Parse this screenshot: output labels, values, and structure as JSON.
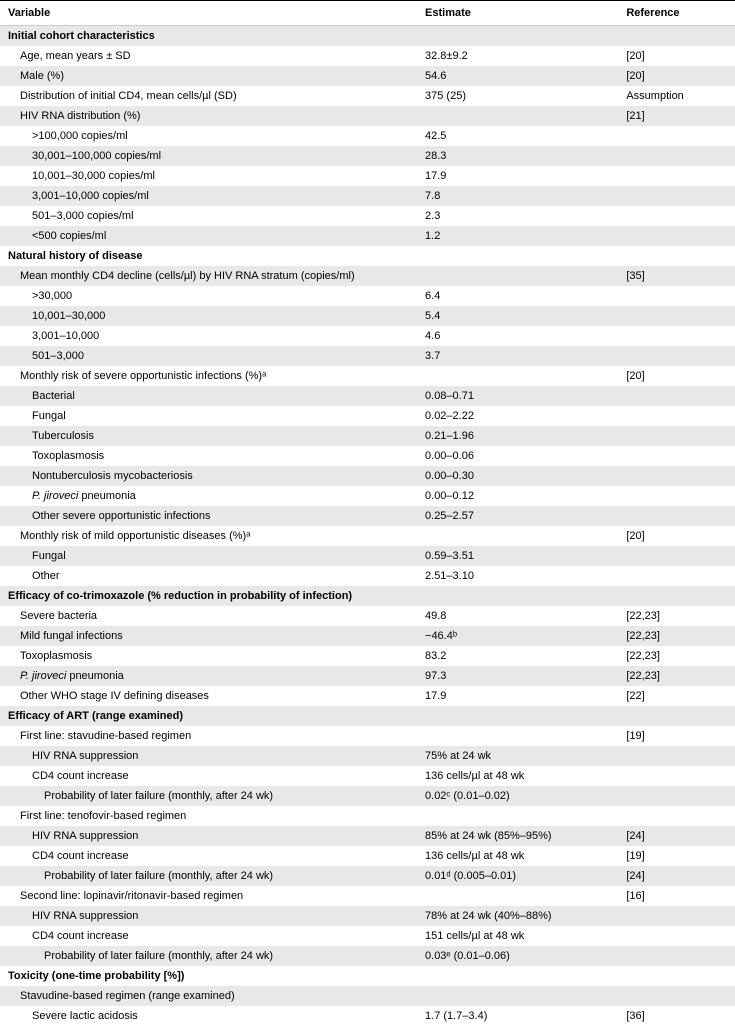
{
  "columns": {
    "variable": "Variable",
    "estimate": "Estimate",
    "reference": "Reference"
  },
  "rows": [
    {
      "type": "section",
      "var": "Initial cohort characteristics",
      "gray": true
    },
    {
      "var": "Age, mean years ± SD",
      "est": "32.8±9.2",
      "ref": "[20]",
      "indent": 1
    },
    {
      "var": "Male (%)",
      "est": "54.6",
      "ref": "[20]",
      "gray": true,
      "indent": 1
    },
    {
      "var": "Distribution of initial CD4, mean cells/µl (SD)",
      "est": "375 (25)",
      "ref": "Assumption",
      "indent": 1
    },
    {
      "var": "HIV RNA distribution (%)",
      "est": "",
      "ref": "[21]",
      "gray": true,
      "indent": 1
    },
    {
      "var": ">100,000 copies/ml",
      "est": "42.5",
      "indent": 2
    },
    {
      "var": "30,001–100,000 copies/ml",
      "est": "28.3",
      "gray": true,
      "indent": 2
    },
    {
      "var": "10,001–30,000 copies/ml",
      "est": "17.9",
      "indent": 2
    },
    {
      "var": "3,001–10,000 copies/ml",
      "est": "7.8",
      "gray": true,
      "indent": 2
    },
    {
      "var": "501–3,000 copies/ml",
      "est": "2.3",
      "indent": 2
    },
    {
      "var": "<500 copies/ml",
      "est": "1.2",
      "gray": true,
      "indent": 2
    },
    {
      "type": "section",
      "var": "Natural history of disease"
    },
    {
      "var": "Mean monthly CD4 decline (cells/µl) by HIV RNA stratum (copies/ml)",
      "est": "",
      "ref": "[35]",
      "gray": true,
      "indent": 1
    },
    {
      "var": ">30,000",
      "est": "6.4",
      "indent": 2
    },
    {
      "var": "10,001–30,000",
      "est": "5.4",
      "gray": true,
      "indent": 2
    },
    {
      "var": "3,001–10,000",
      "est": "4.6",
      "indent": 2
    },
    {
      "var": "501–3,000",
      "est": "3.7",
      "gray": true,
      "indent": 2
    },
    {
      "var": "Monthly risk of severe opportunistic infections (%)ᵃ",
      "est": "",
      "ref": "[20]",
      "indent": 1
    },
    {
      "var": "Bacterial",
      "est": "0.08–0.71",
      "gray": true,
      "indent": 2
    },
    {
      "var": "Fungal",
      "est": "0.02–2.22",
      "indent": 2
    },
    {
      "var": "Tuberculosis",
      "est": "0.21–1.96",
      "gray": true,
      "indent": 2
    },
    {
      "var": "Toxoplasmosis",
      "est": "0.00–0.06",
      "indent": 2
    },
    {
      "var": "Nontuberculosis mycobacteriosis",
      "est": "0.00–0.30",
      "gray": true,
      "indent": 2
    },
    {
      "var": "P. jiroveci pneumonia",
      "est": "0.00–0.12",
      "indent": 2,
      "italicPrefix": "P. jiroveci",
      "suffix": " pneumonia"
    },
    {
      "var": "Other severe opportunistic infections",
      "est": "0.25–2.57",
      "gray": true,
      "indent": 2
    },
    {
      "var": "Monthly risk of mild opportunistic diseases (%)ᵃ",
      "est": "",
      "ref": "[20]",
      "indent": 1
    },
    {
      "var": "Fungal",
      "est": "0.59–3.51",
      "gray": true,
      "indent": 2
    },
    {
      "var": "Other",
      "est": "2.51–3.10",
      "indent": 2
    },
    {
      "type": "section",
      "var": "Efficacy of co-trimoxazole (% reduction in probability of infection)",
      "gray": true
    },
    {
      "var": "Severe bacteria",
      "est": "49.8",
      "ref": "[22,23]",
      "indent": 1
    },
    {
      "var": "Mild fungal infections",
      "est": "−46.4ᵇ",
      "ref": "[22,23]",
      "gray": true,
      "indent": 1
    },
    {
      "var": "Toxoplasmosis",
      "est": "83.2",
      "ref": "[22,23]",
      "indent": 1
    },
    {
      "var": "P. jiroveci pneumonia",
      "est": "97.3",
      "ref": "[22,23]",
      "gray": true,
      "indent": 1,
      "italicPrefix": "P. jiroveci",
      "suffix": " pneumonia"
    },
    {
      "var": "Other WHO stage IV defining diseases",
      "est": "17.9",
      "ref": "[22]",
      "indent": 1
    },
    {
      "type": "section",
      "var": "Efficacy of ART (range examined)",
      "gray": true
    },
    {
      "var": "First line: stavudine-based regimen",
      "est": "",
      "ref": "[19]",
      "indent": 1
    },
    {
      "var": "HIV RNA suppression",
      "est": "75% at 24 wk",
      "gray": true,
      "indent": 2
    },
    {
      "var": "CD4 count increase",
      "est": "136 cells/µl at 48 wk",
      "indent": 2
    },
    {
      "var": "Probability of later failure (monthly, after 24 wk)",
      "est": "0.02ᶜ (0.01–0.02)",
      "gray": true,
      "indent": 3
    },
    {
      "var": "First line: tenofovir-based regimen",
      "est": "",
      "indent": 1
    },
    {
      "var": "HIV RNA suppression",
      "est": "85% at 24 wk (85%–95%)",
      "ref": "[24]",
      "gray": true,
      "indent": 2
    },
    {
      "var": "CD4 count increase",
      "est": "136 cells/µl at 48 wk",
      "ref": "[19]",
      "indent": 2
    },
    {
      "var": "Probability of later failure (monthly, after 24 wk)",
      "est": "0.01ᵈ (0.005–0.01)",
      "ref": "[24]",
      "gray": true,
      "indent": 3
    },
    {
      "var": "Second line: lopinavir/ritonavir-based regimen",
      "est": "",
      "ref": "[16]",
      "indent": 1
    },
    {
      "var": "HIV RNA suppression",
      "est": "78% at 24 wk (40%–88%)",
      "gray": true,
      "indent": 2
    },
    {
      "var": "CD4 count increase",
      "est": "151 cells/µl at 48 wk",
      "indent": 2
    },
    {
      "var": "Probability of later failure (monthly, after 24 wk)",
      "est": "0.03ᵉ (0.01–0.06)",
      "gray": true,
      "indent": 3
    },
    {
      "type": "section",
      "var": "Toxicity (one-time probability [%])"
    },
    {
      "var": "Stavudine-based regimen (range examined)",
      "gray": true,
      "indent": 1
    },
    {
      "var": "Severe lactic acidosis",
      "est": "1.7 (1.7–3.4)",
      "ref": "[36]",
      "indent": 2
    }
  ]
}
